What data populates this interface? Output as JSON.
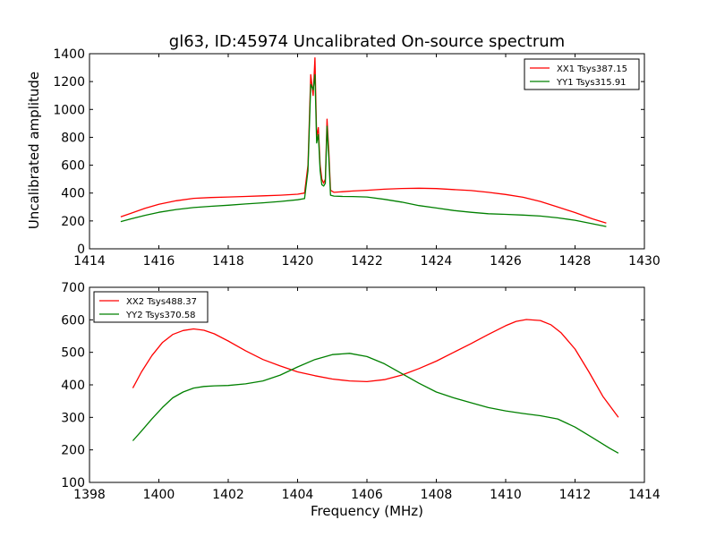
{
  "figure": {
    "title": "gl63, ID:45974 Uncalibrated On-source spectrum",
    "ylabel": "Uncalibrated amplitude",
    "xlabel": "Frequency (MHz)"
  },
  "chart_data": [
    {
      "type": "line",
      "xlim": [
        1414,
        1430
      ],
      "ylim": [
        0,
        1400
      ],
      "xticks": [
        1414,
        1416,
        1418,
        1420,
        1422,
        1424,
        1426,
        1428,
        1430
      ],
      "yticks": [
        0,
        200,
        400,
        600,
        800,
        1000,
        1200,
        1400
      ],
      "legend_position": "top-right",
      "grid": false,
      "series": [
        {
          "name": "XX1 Tsys387.15",
          "color": "#ff0000",
          "x": [
            1414.9,
            1415.2,
            1415.6,
            1416.0,
            1416.5,
            1417.0,
            1417.5,
            1418.0,
            1418.5,
            1419.0,
            1419.5,
            1420.0,
            1420.2,
            1420.3,
            1420.38,
            1420.45,
            1420.5,
            1420.55,
            1420.6,
            1420.65,
            1420.7,
            1420.75,
            1420.8,
            1420.85,
            1420.9,
            1420.95,
            1421.05,
            1421.3,
            1421.6,
            1422.0,
            1422.5,
            1423.0,
            1423.5,
            1424.0,
            1424.5,
            1425.0,
            1425.5,
            1426.0,
            1426.5,
            1427.0,
            1427.5,
            1428.0,
            1428.5,
            1428.9
          ],
          "y": [
            230,
            255,
            290,
            320,
            345,
            362,
            368,
            372,
            376,
            380,
            385,
            392,
            400,
            600,
            1250,
            1100,
            1370,
            800,
            870,
            600,
            500,
            470,
            500,
            930,
            700,
            420,
            405,
            410,
            415,
            420,
            428,
            433,
            435,
            432,
            425,
            418,
            405,
            390,
            370,
            340,
            300,
            260,
            215,
            185
          ]
        },
        {
          "name": "YY1 Tsys315.91",
          "color": "#008000",
          "x": [
            1414.9,
            1415.2,
            1415.6,
            1416.0,
            1416.5,
            1417.0,
            1417.5,
            1418.0,
            1418.5,
            1419.0,
            1419.5,
            1420.0,
            1420.2,
            1420.3,
            1420.38,
            1420.45,
            1420.5,
            1420.55,
            1420.6,
            1420.65,
            1420.7,
            1420.75,
            1420.8,
            1420.85,
            1420.9,
            1420.95,
            1421.05,
            1421.3,
            1421.6,
            1422.0,
            1422.5,
            1423.0,
            1423.5,
            1424.0,
            1424.5,
            1425.0,
            1425.5,
            1426.0,
            1426.5,
            1427.0,
            1427.5,
            1428.0,
            1428.5,
            1428.9
          ],
          "y": [
            195,
            215,
            240,
            262,
            282,
            296,
            305,
            313,
            322,
            330,
            340,
            352,
            360,
            560,
            1180,
            1140,
            1250,
            760,
            820,
            560,
            460,
            450,
            470,
            880,
            650,
            385,
            378,
            376,
            375,
            372,
            355,
            335,
            310,
            293,
            275,
            262,
            252,
            247,
            242,
            235,
            222,
            205,
            180,
            160
          ]
        }
      ]
    },
    {
      "type": "line",
      "xlim": [
        1398,
        1414
      ],
      "ylim": [
        100,
        700
      ],
      "xticks": [
        1398,
        1400,
        1402,
        1404,
        1406,
        1408,
        1410,
        1412,
        1414
      ],
      "yticks": [
        100,
        200,
        300,
        400,
        500,
        600,
        700
      ],
      "legend_position": "top-left",
      "grid": false,
      "series": [
        {
          "name": "XX2 Tsys488.37",
          "color": "#ff0000",
          "x": [
            1399.25,
            1399.5,
            1399.8,
            1400.1,
            1400.4,
            1400.7,
            1401.0,
            1401.3,
            1401.6,
            1402.0,
            1402.5,
            1403.0,
            1403.5,
            1404.0,
            1404.5,
            1405.0,
            1405.5,
            1406.0,
            1406.5,
            1407.0,
            1407.5,
            1408.0,
            1408.5,
            1409.0,
            1409.5,
            1410.0,
            1410.3,
            1410.6,
            1411.0,
            1411.3,
            1411.6,
            1412.0,
            1412.4,
            1412.8,
            1413.25
          ],
          "y": [
            390,
            440,
            490,
            530,
            555,
            567,
            572,
            568,
            557,
            535,
            505,
            478,
            458,
            440,
            428,
            418,
            412,
            410,
            416,
            430,
            450,
            473,
            500,
            527,
            555,
            582,
            595,
            601,
            598,
            585,
            560,
            510,
            440,
            365,
            300
          ]
        },
        {
          "name": "YY2 Tsys370.58",
          "color": "#008000",
          "x": [
            1399.25,
            1399.5,
            1399.8,
            1400.1,
            1400.4,
            1400.7,
            1401.0,
            1401.3,
            1401.6,
            1402.0,
            1402.5,
            1403.0,
            1403.5,
            1404.0,
            1404.5,
            1405.0,
            1405.5,
            1406.0,
            1406.5,
            1407.0,
            1407.5,
            1408.0,
            1408.5,
            1409.0,
            1409.5,
            1410.0,
            1410.5,
            1411.0,
            1411.5,
            1412.0,
            1412.5,
            1413.0,
            1413.25
          ],
          "y": [
            228,
            258,
            295,
            330,
            360,
            378,
            390,
            395,
            397,
            398,
            403,
            412,
            430,
            455,
            478,
            493,
            497,
            487,
            465,
            435,
            405,
            378,
            360,
            345,
            330,
            320,
            312,
            305,
            295,
            270,
            238,
            205,
            190
          ]
        }
      ]
    }
  ]
}
